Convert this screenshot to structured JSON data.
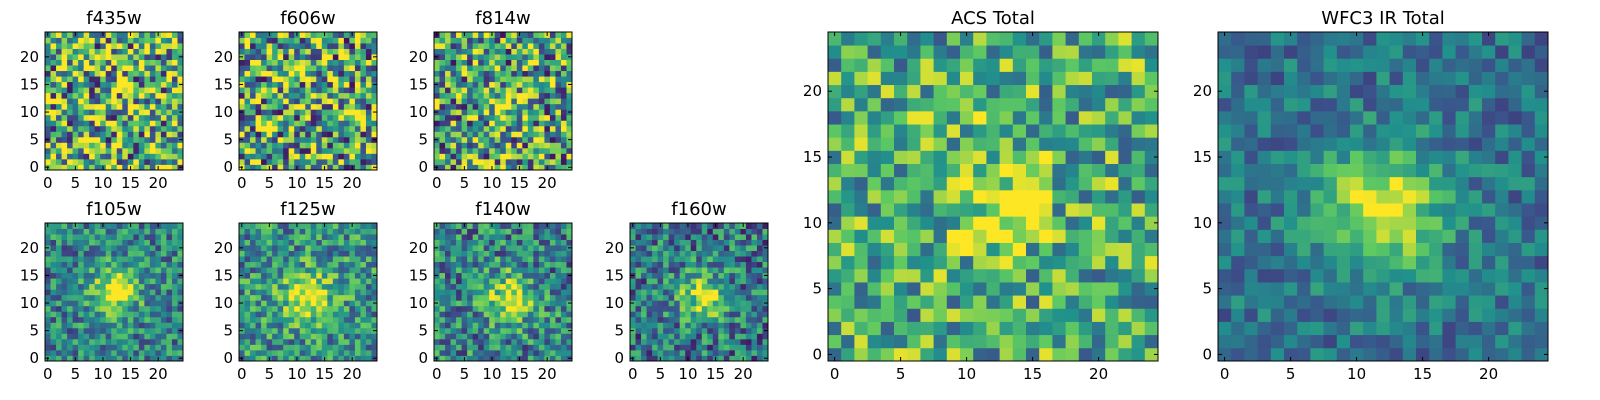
{
  "figure": {
    "colormap": [
      "#440154",
      "#3b528b",
      "#21918c",
      "#5ec962",
      "#fde725"
    ],
    "axis_color": "#000000"
  },
  "chart_data": [
    {
      "type": "heatmap",
      "title": "f435w",
      "xlim": [
        0,
        24
      ],
      "ylim": [
        0,
        24
      ],
      "xticks": [
        "0",
        "5",
        "10",
        "15",
        "20"
      ],
      "yticks": [
        "0",
        "5",
        "10",
        "15",
        "20"
      ],
      "grid_size": 25,
      "peak": null,
      "noise": 0.55,
      "base": 0.62,
      "seed": 3
    },
    {
      "type": "heatmap",
      "title": "f606w",
      "xlim": [
        0,
        24
      ],
      "ylim": [
        0,
        24
      ],
      "xticks": [
        "0",
        "5",
        "10",
        "15",
        "20"
      ],
      "yticks": [
        "0",
        "5",
        "10",
        "15",
        "20"
      ],
      "grid_size": 25,
      "peak": null,
      "noise": 0.55,
      "base": 0.6,
      "seed": 7
    },
    {
      "type": "heatmap",
      "title": "f814w",
      "xlim": [
        0,
        24
      ],
      "ylim": [
        0,
        24
      ],
      "xticks": [
        "0",
        "5",
        "10",
        "15",
        "20"
      ],
      "yticks": [
        "0",
        "5",
        "10",
        "15",
        "20"
      ],
      "grid_size": 25,
      "peak": [
        12,
        11
      ],
      "amp": 0.35,
      "sigma": 2.5,
      "noise": 0.5,
      "base": 0.55,
      "seed": 11
    },
    {
      "type": "heatmap",
      "title": "f105w",
      "xlim": [
        0,
        24
      ],
      "ylim": [
        0,
        24
      ],
      "xticks": [
        "0",
        "5",
        "10",
        "15",
        "20"
      ],
      "yticks": [
        "0",
        "5",
        "10",
        "15",
        "20"
      ],
      "grid_size": 25,
      "peak": [
        12,
        12
      ],
      "amp": 0.55,
      "sigma": 3,
      "noise": 0.28,
      "base": 0.45,
      "seed": 19
    },
    {
      "type": "heatmap",
      "title": "f125w",
      "xlim": [
        0,
        24
      ],
      "ylim": [
        0,
        24
      ],
      "xticks": [
        "0",
        "5",
        "10",
        "15",
        "20"
      ],
      "yticks": [
        "0",
        "5",
        "10",
        "15",
        "20"
      ],
      "grid_size": 25,
      "peak": [
        12,
        11
      ],
      "amp": 0.5,
      "sigma": 3.3,
      "noise": 0.3,
      "base": 0.5,
      "seed": 23
    },
    {
      "type": "heatmap",
      "title": "f140w",
      "xlim": [
        0,
        24
      ],
      "ylim": [
        0,
        24
      ],
      "xticks": [
        "0",
        "5",
        "10",
        "15",
        "20"
      ],
      "yticks": [
        "0",
        "5",
        "10",
        "15",
        "20"
      ],
      "grid_size": 25,
      "peak": [
        13,
        11
      ],
      "amp": 0.5,
      "sigma": 3,
      "noise": 0.32,
      "base": 0.45,
      "seed": 29
    },
    {
      "type": "heatmap",
      "title": "f160w",
      "xlim": [
        0,
        24
      ],
      "ylim": [
        0,
        24
      ],
      "xticks": [
        "0",
        "5",
        "10",
        "15",
        "20"
      ],
      "yticks": [
        "0",
        "5",
        "10",
        "15",
        "20"
      ],
      "grid_size": 25,
      "peak": [
        13,
        11
      ],
      "amp": 0.55,
      "sigma": 3,
      "noise": 0.32,
      "base": 0.4,
      "seed": 31
    },
    {
      "type": "heatmap",
      "title": "ACS Total",
      "xlim": [
        0,
        24
      ],
      "ylim": [
        0,
        24
      ],
      "xticks": [
        "0",
        "5",
        "10",
        "15",
        "20"
      ],
      "yticks": [
        "0",
        "5",
        "10",
        "15",
        "20"
      ],
      "grid_size": 25,
      "peak": [
        12,
        12
      ],
      "amp": 0.3,
      "sigma": 3,
      "noise": 0.35,
      "base": 0.62,
      "seed": 37
    },
    {
      "type": "heatmap",
      "title": "WFC3 IR Total",
      "xlim": [
        0,
        24
      ],
      "ylim": [
        0,
        24
      ],
      "xticks": [
        "0",
        "5",
        "10",
        "15",
        "20"
      ],
      "yticks": [
        "0",
        "5",
        "10",
        "15",
        "20"
      ],
      "grid_size": 25,
      "peak": [
        12,
        11
      ],
      "amp": 0.6,
      "sigma": 3.2,
      "noise": 0.18,
      "base": 0.38,
      "seed": 41
    }
  ]
}
